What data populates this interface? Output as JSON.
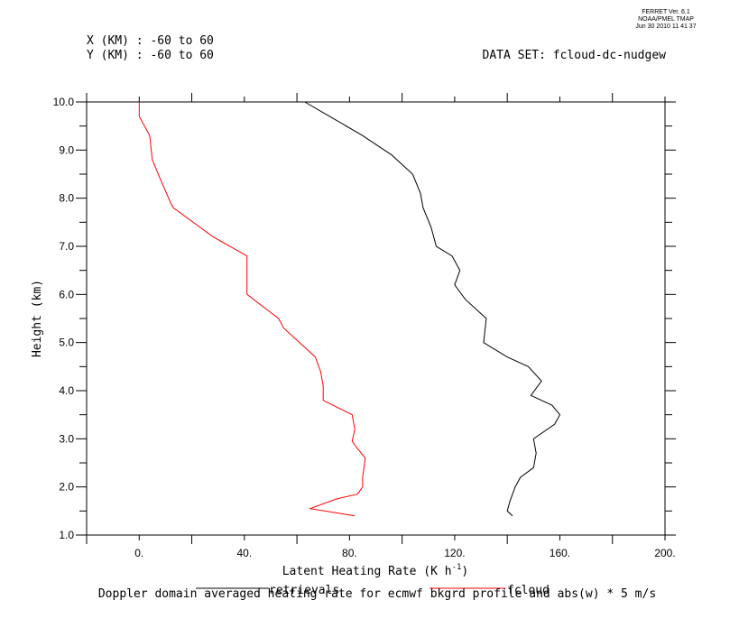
{
  "ferret_header": {
    "line1": "FERRET Ver. 6.1",
    "line2": "NOAA/PMEL TMAP",
    "line3": "Jun 30 2010 11 41 37"
  },
  "info": {
    "x_range": "X (KM) : -60 to 60",
    "y_range": "Y (KM) : -60 to 60",
    "dataset": "DATA SET: fcloud-dc-nudgew"
  },
  "caption": "Doppler domain averaged heating rate for ecmwf bkgrd profile and abs(w) * 5 m/s",
  "colors": {
    "retrievals": "#000000",
    "fcloud": "#ff0000",
    "axes": "#000000"
  },
  "chart_data": {
    "type": "line",
    "xlabel_main": "Latent Heating Rate (K h",
    "xlabel_sup": "-1",
    "xlabel_close": ")",
    "ylabel": "Height (km)",
    "xlim": [
      -20,
      200
    ],
    "ylim": [
      1.0,
      10.0
    ],
    "x_ticks": [
      {
        "value": 0,
        "label": "0."
      },
      {
        "value": 40,
        "label": "40."
      },
      {
        "value": 80,
        "label": "80."
      },
      {
        "value": 120,
        "label": "120."
      },
      {
        "value": 160,
        "label": "160."
      },
      {
        "value": 200,
        "label": "200."
      }
    ],
    "y_ticks": [
      {
        "value": 1.0,
        "label": "1.0"
      },
      {
        "value": 2.0,
        "label": "2.0"
      },
      {
        "value": 3.0,
        "label": "3.0"
      },
      {
        "value": 4.0,
        "label": "4.0"
      },
      {
        "value": 5.0,
        "label": "5.0"
      },
      {
        "value": 6.0,
        "label": "6.0"
      },
      {
        "value": 7.0,
        "label": "7.0"
      },
      {
        "value": 8.0,
        "label": "8.0"
      },
      {
        "value": 9.0,
        "label": "9.0"
      },
      {
        "value": 10.0,
        "label": "10.0"
      }
    ],
    "grid": false,
    "legend_position": "bottom",
    "series": [
      {
        "name": "retrievals",
        "color": "#000000",
        "points": [
          [
            142,
            1.4
          ],
          [
            140,
            1.5
          ],
          [
            141,
            1.7
          ],
          [
            143,
            2.0
          ],
          [
            145,
            2.2
          ],
          [
            150,
            2.4
          ],
          [
            151,
            2.7
          ],
          [
            150,
            3.0
          ],
          [
            158,
            3.3
          ],
          [
            160,
            3.5
          ],
          [
            157,
            3.7
          ],
          [
            149,
            3.9
          ],
          [
            153,
            4.2
          ],
          [
            148,
            4.5
          ],
          [
            140,
            4.7
          ],
          [
            131,
            5.0
          ],
          [
            132,
            5.5
          ],
          [
            124,
            5.9
          ],
          [
            120,
            6.2
          ],
          [
            122,
            6.5
          ],
          [
            119,
            6.8
          ],
          [
            113,
            7.0
          ],
          [
            111,
            7.4
          ],
          [
            108,
            7.8
          ],
          [
            107,
            8.1
          ],
          [
            104,
            8.5
          ],
          [
            96,
            8.9
          ],
          [
            85,
            9.3
          ],
          [
            63,
            10.0
          ]
        ]
      },
      {
        "name": "fcloud",
        "color": "#ff0000",
        "points": [
          [
            82,
            1.4
          ],
          [
            65,
            1.55
          ],
          [
            75,
            1.75
          ],
          [
            83,
            1.85
          ],
          [
            85,
            2.0
          ],
          [
            85,
            2.2
          ],
          [
            86,
            2.6
          ],
          [
            83,
            2.8
          ],
          [
            81,
            2.95
          ],
          [
            82,
            3.2
          ],
          [
            81,
            3.5
          ],
          [
            70,
            3.8
          ],
          [
            70,
            4.1
          ],
          [
            69,
            4.4
          ],
          [
            67,
            4.7
          ],
          [
            61,
            5.0
          ],
          [
            55,
            5.3
          ],
          [
            53,
            5.5
          ],
          [
            41,
            6.0
          ],
          [
            41,
            6.3
          ],
          [
            41,
            6.8
          ],
          [
            28,
            7.2
          ],
          [
            13,
            7.8
          ],
          [
            12,
            7.9
          ],
          [
            8,
            8.4
          ],
          [
            5,
            8.8
          ],
          [
            4,
            9.3
          ],
          [
            0,
            9.7
          ],
          [
            0,
            10.0
          ]
        ]
      }
    ]
  }
}
